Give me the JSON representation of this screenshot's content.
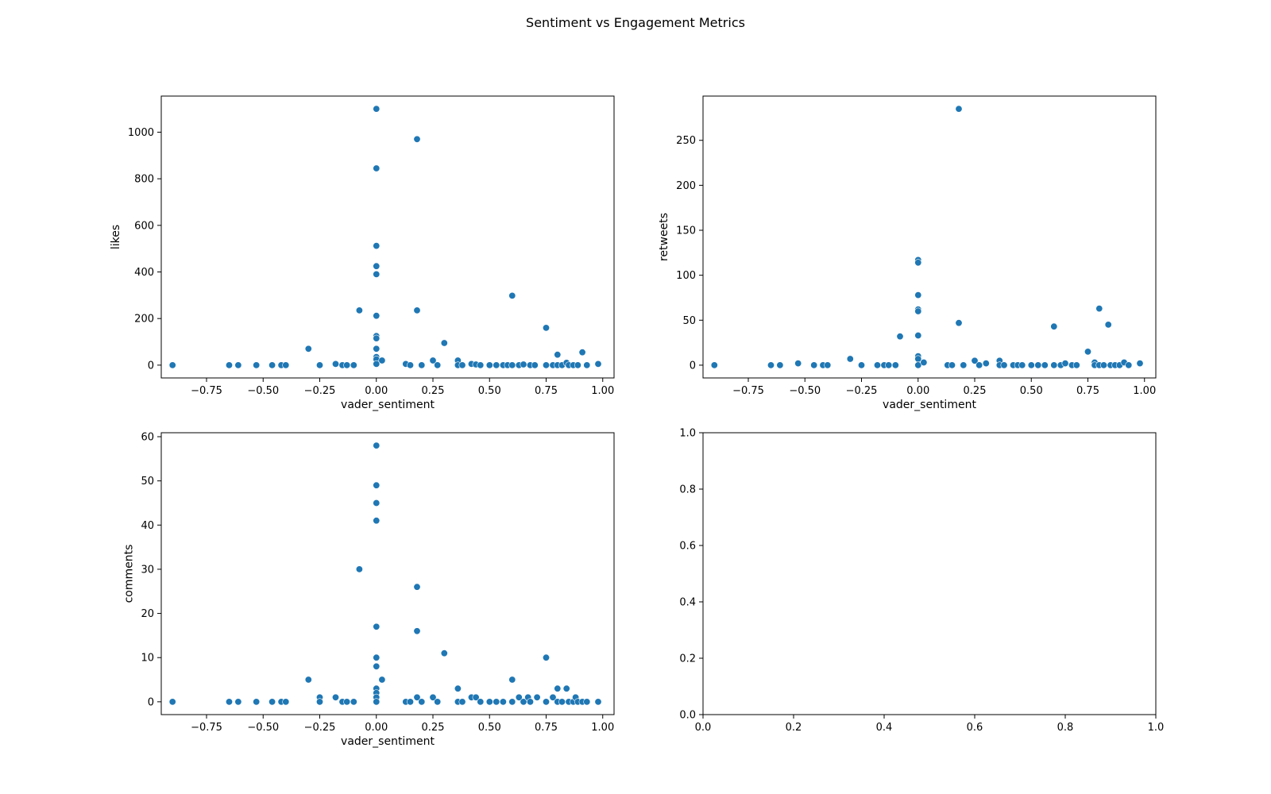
{
  "figure": {
    "suptitle": "Sentiment vs Engagement Metrics"
  },
  "chart_data": [
    {
      "type": "scatter",
      "xlabel": "vader_sentiment",
      "ylabel": "likes",
      "xlim": [
        -0.95,
        1.05
      ],
      "ylim": [
        -55,
        1155
      ],
      "xticks": [
        -0.75,
        -0.5,
        -0.25,
        0.0,
        0.25,
        0.5,
        0.75,
        1.0
      ],
      "xtick_labels": [
        "−0.75",
        "−0.50",
        "−0.25",
        "0.00",
        "0.25",
        "0.50",
        "0.75",
        "1.00"
      ],
      "yticks": [
        0,
        200,
        400,
        600,
        800,
        1000
      ],
      "ytick_labels": [
        "0",
        "200",
        "400",
        "600",
        "800",
        "1000"
      ],
      "marker_color": "#1f77b4",
      "series": [
        {
          "points": [
            [
              -0.9,
              0
            ],
            [
              -0.65,
              0
            ],
            [
              -0.61,
              0
            ],
            [
              -0.53,
              0
            ],
            [
              -0.46,
              0
            ],
            [
              -0.42,
              0
            ],
            [
              -0.4,
              0
            ],
            [
              -0.3,
              70
            ],
            [
              -0.25,
              0
            ],
            [
              -0.18,
              5
            ],
            [
              -0.15,
              0
            ],
            [
              -0.13,
              0
            ],
            [
              -0.1,
              0
            ],
            [
              -0.075,
              235
            ],
            [
              0,
              1100
            ],
            [
              0,
              845
            ],
            [
              0,
              512
            ],
            [
              0,
              425
            ],
            [
              0,
              390
            ],
            [
              0,
              212
            ],
            [
              0,
              125
            ],
            [
              0,
              115
            ],
            [
              0,
              70
            ],
            [
              0,
              35
            ],
            [
              0,
              25
            ],
            [
              0,
              5
            ],
            [
              0.025,
              20
            ],
            [
              0.13,
              5
            ],
            [
              0.15,
              0
            ],
            [
              0.18,
              970
            ],
            [
              0.18,
              235
            ],
            [
              0.2,
              0
            ],
            [
              0.25,
              20
            ],
            [
              0.27,
              0
            ],
            [
              0.3,
              95
            ],
            [
              0.36,
              20
            ],
            [
              0.36,
              0
            ],
            [
              0.38,
              0
            ],
            [
              0.42,
              5
            ],
            [
              0.44,
              3
            ],
            [
              0.46,
              0
            ],
            [
              0.5,
              0
            ],
            [
              0.53,
              0
            ],
            [
              0.56,
              0
            ],
            [
              0.58,
              0
            ],
            [
              0.6,
              298
            ],
            [
              0.6,
              0
            ],
            [
              0.63,
              0
            ],
            [
              0.65,
              3
            ],
            [
              0.68,
              0
            ],
            [
              0.7,
              0
            ],
            [
              0.75,
              160
            ],
            [
              0.75,
              0
            ],
            [
              0.78,
              0
            ],
            [
              0.8,
              45
            ],
            [
              0.8,
              0
            ],
            [
              0.82,
              0
            ],
            [
              0.84,
              10
            ],
            [
              0.85,
              0
            ],
            [
              0.87,
              0
            ],
            [
              0.89,
              0
            ],
            [
              0.91,
              55
            ],
            [
              0.93,
              0
            ],
            [
              0.98,
              5
            ]
          ]
        }
      ]
    },
    {
      "type": "scatter",
      "xlabel": "vader_sentiment",
      "ylabel": "retweets",
      "xlim": [
        -0.95,
        1.05
      ],
      "ylim": [
        -14.2,
        299.2
      ],
      "xticks": [
        -0.75,
        -0.5,
        -0.25,
        0.0,
        0.25,
        0.5,
        0.75,
        1.0
      ],
      "xtick_labels": [
        "−0.75",
        "−0.50",
        "−0.25",
        "0.00",
        "0.25",
        "0.50",
        "0.75",
        "1.00"
      ],
      "yticks": [
        0,
        50,
        100,
        150,
        200,
        250
      ],
      "ytick_labels": [
        "0",
        "50",
        "100",
        "150",
        "200",
        "250"
      ],
      "marker_color": "#1f77b4",
      "series": [
        {
          "points": [
            [
              -0.9,
              0
            ],
            [
              -0.65,
              0
            ],
            [
              -0.61,
              0
            ],
            [
              -0.53,
              2
            ],
            [
              -0.46,
              0
            ],
            [
              -0.42,
              0
            ],
            [
              -0.4,
              0
            ],
            [
              -0.3,
              7
            ],
            [
              -0.25,
              0
            ],
            [
              -0.18,
              0
            ],
            [
              -0.15,
              0
            ],
            [
              -0.13,
              0
            ],
            [
              -0.1,
              0
            ],
            [
              -0.08,
              32
            ],
            [
              0,
              117
            ],
            [
              0,
              114
            ],
            [
              0,
              78
            ],
            [
              0,
              62
            ],
            [
              0,
              60
            ],
            [
              0,
              33
            ],
            [
              0,
              10
            ],
            [
              0,
              7
            ],
            [
              0,
              0
            ],
            [
              0.025,
              3
            ],
            [
              0.13,
              0
            ],
            [
              0.15,
              0
            ],
            [
              0.18,
              285
            ],
            [
              0.18,
              47
            ],
            [
              0.2,
              0
            ],
            [
              0.25,
              5
            ],
            [
              0.27,
              0
            ],
            [
              0.3,
              2
            ],
            [
              0.36,
              5
            ],
            [
              0.36,
              0
            ],
            [
              0.38,
              0
            ],
            [
              0.42,
              0
            ],
            [
              0.44,
              0
            ],
            [
              0.46,
              0
            ],
            [
              0.5,
              0
            ],
            [
              0.53,
              0
            ],
            [
              0.56,
              0
            ],
            [
              0.6,
              43
            ],
            [
              0.6,
              0
            ],
            [
              0.63,
              0
            ],
            [
              0.65,
              2
            ],
            [
              0.68,
              0
            ],
            [
              0.7,
              0
            ],
            [
              0.75,
              15
            ],
            [
              0.78,
              3
            ],
            [
              0.78,
              0
            ],
            [
              0.8,
              63
            ],
            [
              0.8,
              0
            ],
            [
              0.82,
              0
            ],
            [
              0.84,
              45
            ],
            [
              0.85,
              0
            ],
            [
              0.87,
              0
            ],
            [
              0.89,
              0
            ],
            [
              0.91,
              3
            ],
            [
              0.93,
              0
            ],
            [
              0.98,
              2
            ]
          ]
        }
      ]
    },
    {
      "type": "scatter",
      "xlabel": "vader_sentiment",
      "ylabel": "comments",
      "xlim": [
        -0.95,
        1.05
      ],
      "ylim": [
        -2.9,
        60.9
      ],
      "xticks": [
        -0.75,
        -0.5,
        -0.25,
        0.0,
        0.25,
        0.5,
        0.75,
        1.0
      ],
      "xtick_labels": [
        "−0.75",
        "−0.50",
        "−0.25",
        "0.00",
        "0.25",
        "0.50",
        "0.75",
        "1.00"
      ],
      "yticks": [
        0,
        10,
        20,
        30,
        40,
        50,
        60
      ],
      "ytick_labels": [
        "0",
        "10",
        "20",
        "30",
        "40",
        "50",
        "60"
      ],
      "marker_color": "#1f77b4",
      "series": [
        {
          "points": [
            [
              -0.9,
              0
            ],
            [
              -0.65,
              0
            ],
            [
              -0.61,
              0
            ],
            [
              -0.53,
              0
            ],
            [
              -0.46,
              0
            ],
            [
              -0.42,
              0
            ],
            [
              -0.4,
              0
            ],
            [
              -0.3,
              5
            ],
            [
              -0.25,
              1
            ],
            [
              -0.25,
              0
            ],
            [
              -0.18,
              1
            ],
            [
              -0.15,
              0
            ],
            [
              -0.13,
              0
            ],
            [
              -0.1,
              0
            ],
            [
              -0.075,
              30
            ],
            [
              0,
              58
            ],
            [
              0,
              49
            ],
            [
              0,
              45
            ],
            [
              0,
              41
            ],
            [
              0,
              17
            ],
            [
              0,
              10
            ],
            [
              0,
              8
            ],
            [
              0,
              3
            ],
            [
              0,
              2
            ],
            [
              0,
              1
            ],
            [
              0,
              0
            ],
            [
              0.025,
              5
            ],
            [
              0.13,
              0
            ],
            [
              0.15,
              0
            ],
            [
              0.18,
              26
            ],
            [
              0.18,
              16
            ],
            [
              0.18,
              1
            ],
            [
              0.2,
              0
            ],
            [
              0.25,
              1
            ],
            [
              0.27,
              0
            ],
            [
              0.3,
              11
            ],
            [
              0.36,
              3
            ],
            [
              0.36,
              0
            ],
            [
              0.38,
              0
            ],
            [
              0.42,
              1
            ],
            [
              0.44,
              1
            ],
            [
              0.46,
              0
            ],
            [
              0.5,
              0
            ],
            [
              0.53,
              0
            ],
            [
              0.56,
              0
            ],
            [
              0.6,
              5
            ],
            [
              0.6,
              0
            ],
            [
              0.63,
              1
            ],
            [
              0.65,
              0
            ],
            [
              0.67,
              1
            ],
            [
              0.68,
              0
            ],
            [
              0.71,
              1
            ],
            [
              0.75,
              10
            ],
            [
              0.75,
              0
            ],
            [
              0.78,
              1
            ],
            [
              0.8,
              3
            ],
            [
              0.8,
              0
            ],
            [
              0.82,
              0
            ],
            [
              0.84,
              3
            ],
            [
              0.85,
              0
            ],
            [
              0.87,
              0
            ],
            [
              0.88,
              1
            ],
            [
              0.89,
              0
            ],
            [
              0.91,
              0
            ],
            [
              0.93,
              0
            ],
            [
              0.98,
              0
            ]
          ]
        }
      ]
    },
    {
      "type": "scatter",
      "xlabel": "",
      "ylabel": "",
      "xlim": [
        0,
        1
      ],
      "ylim": [
        0,
        1
      ],
      "xticks": [
        0.0,
        0.2,
        0.4,
        0.6,
        0.8,
        1.0
      ],
      "xtick_labels": [
        "0.0",
        "0.2",
        "0.4",
        "0.6",
        "0.8",
        "1.0"
      ],
      "yticks": [
        0.0,
        0.2,
        0.4,
        0.6,
        0.8,
        1.0
      ],
      "ytick_labels": [
        "0.0",
        "0.2",
        "0.4",
        "0.6",
        "0.8",
        "1.0"
      ],
      "marker_color": "#1f77b4",
      "series": []
    }
  ]
}
